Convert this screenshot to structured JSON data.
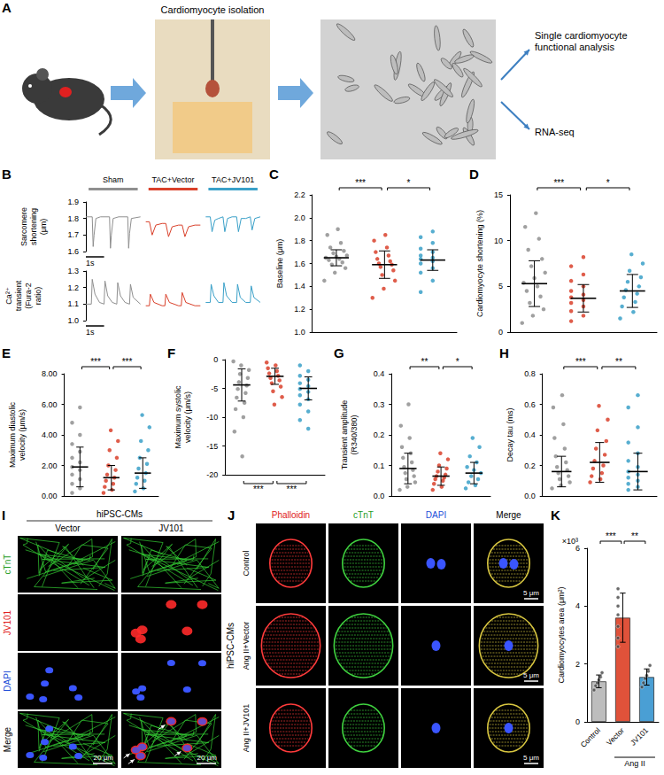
{
  "figure": {
    "A": {
      "letter": "A",
      "step_label": "Cardiomyocyte isolation",
      "outputs": [
        "Single cardiomyocyte functional analysis",
        "RNA-seq"
      ]
    },
    "I": {
      "letter": "I",
      "header": "hiPSC-CMs",
      "columns": [
        "Vector",
        "JV101"
      ],
      "rows": [
        "cTnT",
        "JV101",
        "DAPI",
        "Merge"
      ],
      "scale_bar": "20 μm"
    },
    "J": {
      "letter": "J",
      "header": "hiPSC-CMs",
      "columns": [
        "Phalloidin",
        "cTnT",
        "DAPI",
        "Merge"
      ],
      "rows": [
        "Control",
        "Ang II+Vector",
        "Ang II+JV101"
      ],
      "scale_bar": "5 μm"
    }
  },
  "chart_data": [
    {
      "letter": "B",
      "type": "line",
      "tick_labels": "y",
      "grid": false,
      "groups": [
        {
          "name": "Sham",
          "color": "#8f8f8f"
        },
        {
          "name": "TAC+Vector",
          "color": "#d9412b"
        },
        {
          "name": "TAC+JV101",
          "color": "#3aa0c8"
        }
      ],
      "xlim": [
        0,
        3
      ],
      "scale_bar": {
        "label": "1s",
        "value": 1
      },
      "rows": [
        {
          "ylabel": "Sarcomere shortening (μm)",
          "ylim": [
            1.6,
            1.9
          ],
          "yticks": [
            1.6,
            1.7,
            1.8,
            1.9
          ],
          "series": [
            {
              "name": "Sham",
              "x": [
                0,
                0.35,
                0.4,
                0.45,
                0.55,
                0.8,
                1.3,
                1.35,
                1.4,
                1.5,
                1.8,
                2.3,
                2.35,
                2.4,
                2.5,
                3.0
              ],
              "values": [
                1.81,
                1.81,
                1.63,
                1.7,
                1.8,
                1.81,
                1.81,
                1.62,
                1.7,
                1.8,
                1.81,
                1.81,
                1.62,
                1.71,
                1.8,
                1.81
              ]
            },
            {
              "name": "TAC+Vector",
              "x": [
                0,
                0.2,
                0.35,
                0.55,
                0.9,
                1.1,
                1.25,
                1.45,
                1.8,
                2.0,
                2.15,
                2.35,
                2.7,
                3.0
              ],
              "values": [
                1.78,
                1.78,
                1.7,
                1.76,
                1.77,
                1.77,
                1.69,
                1.75,
                1.76,
                1.76,
                1.69,
                1.75,
                1.76,
                1.76
              ]
            },
            {
              "name": "TAC+JV101",
              "x": [
                0,
                0.25,
                0.35,
                0.5,
                0.7,
                0.95,
                1.05,
                1.2,
                1.45,
                1.7,
                1.8,
                1.95,
                2.2,
                2.45,
                2.55,
                2.7,
                3.0
              ],
              "values": [
                1.81,
                1.81,
                1.72,
                1.79,
                1.8,
                1.81,
                1.72,
                1.8,
                1.81,
                1.81,
                1.72,
                1.8,
                1.8,
                1.81,
                1.73,
                1.8,
                1.81
              ]
            }
          ]
        },
        {
          "ylabel": "Ca²⁺ transient (Fura-2 ratio)",
          "ylim": [
            1.0,
            1.3
          ],
          "yticks": [
            {
              "value": 1.0,
              "label": "1.0"
            },
            1.1,
            1.2,
            1.3
          ],
          "series": [
            {
              "name": "Sham",
              "x": [
                0,
                0.3,
                0.35,
                0.5,
                0.75,
                1.0,
                1.05,
                1.2,
                1.45,
                1.7,
                1.75,
                1.9,
                2.15,
                2.4,
                2.45,
                2.6,
                3.0
              ],
              "values": [
                1.1,
                1.1,
                1.25,
                1.16,
                1.11,
                1.1,
                1.24,
                1.15,
                1.11,
                1.1,
                1.23,
                1.15,
                1.11,
                1.1,
                1.22,
                1.14,
                1.1
              ]
            },
            {
              "name": "TAC+Vector",
              "x": [
                0,
                0.2,
                0.25,
                0.45,
                0.9,
                1.05,
                1.1,
                1.3,
                1.8,
                1.95,
                2.0,
                2.2,
                2.7,
                3.0
              ],
              "values": [
                1.09,
                1.09,
                1.16,
                1.11,
                1.09,
                1.09,
                1.16,
                1.11,
                1.09,
                1.09,
                1.17,
                1.11,
                1.09,
                1.09
              ]
            },
            {
              "name": "TAC+JV101",
              "x": [
                0,
                0.25,
                0.3,
                0.45,
                0.7,
                0.95,
                1.0,
                1.15,
                1.45,
                1.7,
                1.75,
                1.9,
                2.2,
                2.45,
                2.5,
                2.65,
                3.0
              ],
              "values": [
                1.11,
                1.11,
                1.22,
                1.15,
                1.11,
                1.11,
                1.23,
                1.15,
                1.11,
                1.11,
                1.22,
                1.14,
                1.11,
                1.11,
                1.21,
                1.14,
                1.11
              ]
            }
          ]
        }
      ]
    },
    {
      "letter": "C",
      "type": "scatter",
      "tick_labels": "y",
      "grid": false,
      "ylabel": "Baseline (μm)",
      "categories": [
        null,
        null,
        null
      ],
      "colors": [
        "#8f8f8f",
        "#d9412b",
        "#3aa0c8"
      ],
      "values": [
        [
          1.45,
          1.52,
          1.56,
          1.59,
          1.61,
          1.63,
          1.64,
          1.65,
          1.66,
          1.67,
          1.69,
          1.71,
          1.74,
          1.78,
          1.85,
          1.9
        ],
        [
          1.3,
          1.38,
          1.45,
          1.5,
          1.54,
          1.57,
          1.59,
          1.6,
          1.62,
          1.64,
          1.67,
          1.7,
          1.74,
          1.8,
          1.85
        ],
        [
          1.35,
          1.45,
          1.52,
          1.56,
          1.6,
          1.62,
          1.64,
          1.65,
          1.67,
          1.7,
          1.73,
          1.78,
          1.83,
          1.88
        ]
      ],
      "mean": [
        1.65,
        1.59,
        1.63
      ],
      "sd": [
        0.07,
        0.12,
        0.09
      ],
      "ylim": [
        1.0,
        2.2
      ],
      "yticks": [
        {
          "value": 1.0,
          "label": "1.0"
        },
        1.2,
        1.4,
        1.6,
        1.8,
        {
          "value": 2.0,
          "label": "2.0"
        },
        2.2
      ],
      "annotations": [
        {
          "from": 0,
          "to": 1,
          "label": "***"
        },
        {
          "from": 1,
          "to": 2,
          "label": "*"
        }
      ]
    },
    {
      "letter": "D",
      "type": "scatter",
      "tick_labels": "y",
      "grid": false,
      "ylabel": "Cardiomyocyte shortening (%)",
      "categories": [
        null,
        null,
        null
      ],
      "colors": [
        "#8f8f8f",
        "#d9412b",
        "#3aa0c8"
      ],
      "values": [
        [
          1.0,
          1.8,
          2.5,
          3.2,
          3.9,
          4.5,
          5.0,
          5.4,
          5.9,
          6.5,
          7.2,
          8.0,
          9.0,
          10.2,
          11.5,
          13.0
        ],
        [
          1.2,
          1.8,
          2.3,
          2.8,
          3.2,
          3.5,
          3.8,
          4.1,
          4.5,
          5.0,
          5.6,
          6.3,
          7.2,
          8.2
        ],
        [
          1.5,
          2.2,
          2.8,
          3.3,
          3.8,
          4.2,
          4.6,
          5.0,
          5.5,
          6.0,
          6.7,
          7.5,
          8.5
        ]
      ],
      "mean": [
        5.3,
        3.7,
        4.5
      ],
      "sd": [
        2.5,
        1.5,
        1.8
      ],
      "ylim": [
        0,
        15
      ],
      "yticks": [
        0,
        5,
        10,
        15
      ],
      "annotations": [
        {
          "from": 0,
          "to": 1,
          "label": "***"
        },
        {
          "from": 1,
          "to": 2,
          "label": "*"
        }
      ]
    },
    {
      "letter": "E",
      "type": "scatter",
      "tick_labels": "y",
      "grid": false,
      "ylabel": "Maximum diastolic velocity (μm/s)",
      "categories": [
        null,
        null,
        null
      ],
      "colors": [
        "#8f8f8f",
        "#d9412b",
        "#3aa0c8"
      ],
      "values": [
        [
          0.2,
          0.5,
          0.8,
          1.1,
          1.4,
          1.7,
          1.9,
          2.2,
          2.5,
          2.9,
          3.4,
          4.0,
          4.8,
          5.8
        ],
        [
          0.2,
          0.4,
          0.6,
          0.8,
          1.0,
          1.2,
          1.4,
          1.7,
          2.0,
          2.5,
          3.0,
          3.6,
          4.3
        ],
        [
          0.3,
          0.5,
          0.8,
          1.0,
          1.2,
          1.5,
          1.8,
          2.1,
          2.5,
          3.0,
          3.6,
          4.5,
          5.3
        ]
      ],
      "mean": [
        1.9,
        1.2,
        1.5
      ],
      "sd": [
        1.3,
        0.8,
        1.0
      ],
      "ylim": [
        0,
        8
      ],
      "yticks": [
        {
          "value": 0,
          "label": "0.00"
        },
        {
          "value": 2,
          "label": "2.00"
        },
        {
          "value": 4,
          "label": "4.00"
        },
        {
          "value": 6,
          "label": "6.00"
        },
        {
          "value": 8,
          "label": "8.00"
        }
      ],
      "annotations": [
        {
          "from": 0,
          "to": 1,
          "label": "***"
        },
        {
          "from": 1,
          "to": 2,
          "label": "***"
        }
      ]
    },
    {
      "letter": "F",
      "type": "scatter",
      "tick_labels": "y",
      "grid": false,
      "ylabel": "Maximum systolic velocity (μm/s)",
      "categories": [
        null,
        null,
        null
      ],
      "colors": [
        "#8f8f8f",
        "#d9412b",
        "#3aa0c8"
      ],
      "values": [
        [
          -0.3,
          -1.0,
          -1.8,
          -2.5,
          -3.2,
          -3.9,
          -4.5,
          -5.1,
          -5.8,
          -6.6,
          -7.5,
          -8.6,
          -10.0,
          -12.5,
          -16.8
        ],
        [
          -0.5,
          -1.0,
          -1.5,
          -2.0,
          -2.4,
          -2.8,
          -3.2,
          -3.6,
          -4.1,
          -4.7,
          -5.5,
          -6.5,
          -7.8
        ],
        [
          -1.0,
          -2.0,
          -2.8,
          -3.5,
          -4.1,
          -4.6,
          -5.1,
          -5.6,
          -6.2,
          -6.9,
          -7.8,
          -9.0,
          -10.5,
          -12.0
        ]
      ],
      "mean": [
        -4.4,
        -2.9,
        -5.0
      ],
      "sd": [
        2.8,
        1.4,
        2.0
      ],
      "ylim": [
        -20,
        0
      ],
      "yticks": [
        -20,
        -15,
        -10,
        -5,
        0
      ],
      "annotations": [
        {
          "from": 0,
          "to": 1,
          "label": "***"
        },
        {
          "from": 1,
          "to": 2,
          "label": "***"
        }
      ]
    },
    {
      "letter": "G",
      "type": "scatter",
      "tick_labels": "y",
      "grid": false,
      "ylabel": "Transient amplitude (R340/380)",
      "categories": [
        null,
        null,
        null
      ],
      "colors": [
        "#8f8f8f",
        "#d9412b",
        "#3aa0c8"
      ],
      "values": [
        [
          0.02,
          0.03,
          0.045,
          0.055,
          0.065,
          0.075,
          0.085,
          0.095,
          0.11,
          0.125,
          0.14,
          0.16,
          0.19,
          0.23,
          0.3
        ],
        [
          0.02,
          0.03,
          0.04,
          0.05,
          0.055,
          0.06,
          0.065,
          0.07,
          0.08,
          0.09,
          0.1,
          0.12,
          0.14
        ],
        [
          0.025,
          0.035,
          0.045,
          0.055,
          0.065,
          0.075,
          0.085,
          0.095,
          0.11,
          0.13,
          0.16,
          0.19
        ]
      ],
      "mean": [
        0.09,
        0.065,
        0.075
      ],
      "sd": [
        0.05,
        0.03,
        0.035
      ],
      "ylim": [
        0,
        0.4
      ],
      "yticks": [
        {
          "value": 0,
          "label": "0.0"
        },
        0.1,
        0.2,
        0.3,
        0.4
      ],
      "annotations": [
        {
          "from": 0,
          "to": 1,
          "label": "**"
        },
        {
          "from": 1,
          "to": 2,
          "label": "*"
        }
      ]
    },
    {
      "letter": "H",
      "type": "scatter",
      "tick_labels": "y",
      "grid": false,
      "ylabel": "Decay tau (ms)",
      "categories": [
        null,
        null,
        null
      ],
      "colors": [
        "#8f8f8f",
        "#d9412b",
        "#3aa0c8"
      ],
      "values": [
        [
          0.05,
          0.07,
          0.09,
          0.11,
          0.13,
          0.15,
          0.17,
          0.19,
          0.22,
          0.26,
          0.31,
          0.38,
          0.47,
          0.58,
          0.66
        ],
        [
          0.09,
          0.11,
          0.13,
          0.15,
          0.18,
          0.2,
          0.23,
          0.27,
          0.31,
          0.36,
          0.43,
          0.5,
          0.59
        ],
        [
          0.04,
          0.06,
          0.08,
          0.1,
          0.12,
          0.14,
          0.16,
          0.19,
          0.23,
          0.28,
          0.35,
          0.45,
          0.58,
          0.66
        ]
      ],
      "mean": [
        0.16,
        0.22,
        0.16
      ],
      "sd": [
        0.1,
        0.13,
        0.12
      ],
      "ylim": [
        0,
        0.8
      ],
      "yticks": [
        {
          "value": 0,
          "label": "0.0"
        },
        0.2,
        0.4,
        0.6,
        0.8
      ],
      "annotations": [
        {
          "from": 0,
          "to": 1,
          "label": "***"
        },
        {
          "from": 1,
          "to": 2,
          "label": "**"
        }
      ]
    },
    {
      "letter": "K",
      "type": "bar",
      "grid": false,
      "ylabel": "Cardiomyocytes area (μm²)",
      "scale_label": "×10³",
      "categories": [
        "Control",
        "Vector",
        "JV101"
      ],
      "colors": [
        "#bdbdbd",
        "#e0523a",
        "#4a9fd4"
      ],
      "values": [
        1.4,
        3.6,
        1.55
      ],
      "sd": [
        0.22,
        0.85,
        0.28
      ],
      "points": [
        [
          1.1,
          1.25,
          1.35,
          1.45,
          1.55,
          1.7
        ],
        [
          2.6,
          2.9,
          3.3,
          3.7,
          4.0,
          4.3,
          4.6
        ],
        [
          1.2,
          1.35,
          1.5,
          1.6,
          1.75,
          1.95
        ]
      ],
      "group_label": {
        "text": "Ang II",
        "from": 1,
        "to": 2
      },
      "ylim": [
        0,
        6
      ],
      "yticks": [
        0,
        2,
        4,
        6
      ],
      "annotations": [
        {
          "from": 0,
          "to": 1,
          "label": "***"
        },
        {
          "from": 1,
          "to": 2,
          "label": "**"
        }
      ]
    }
  ]
}
